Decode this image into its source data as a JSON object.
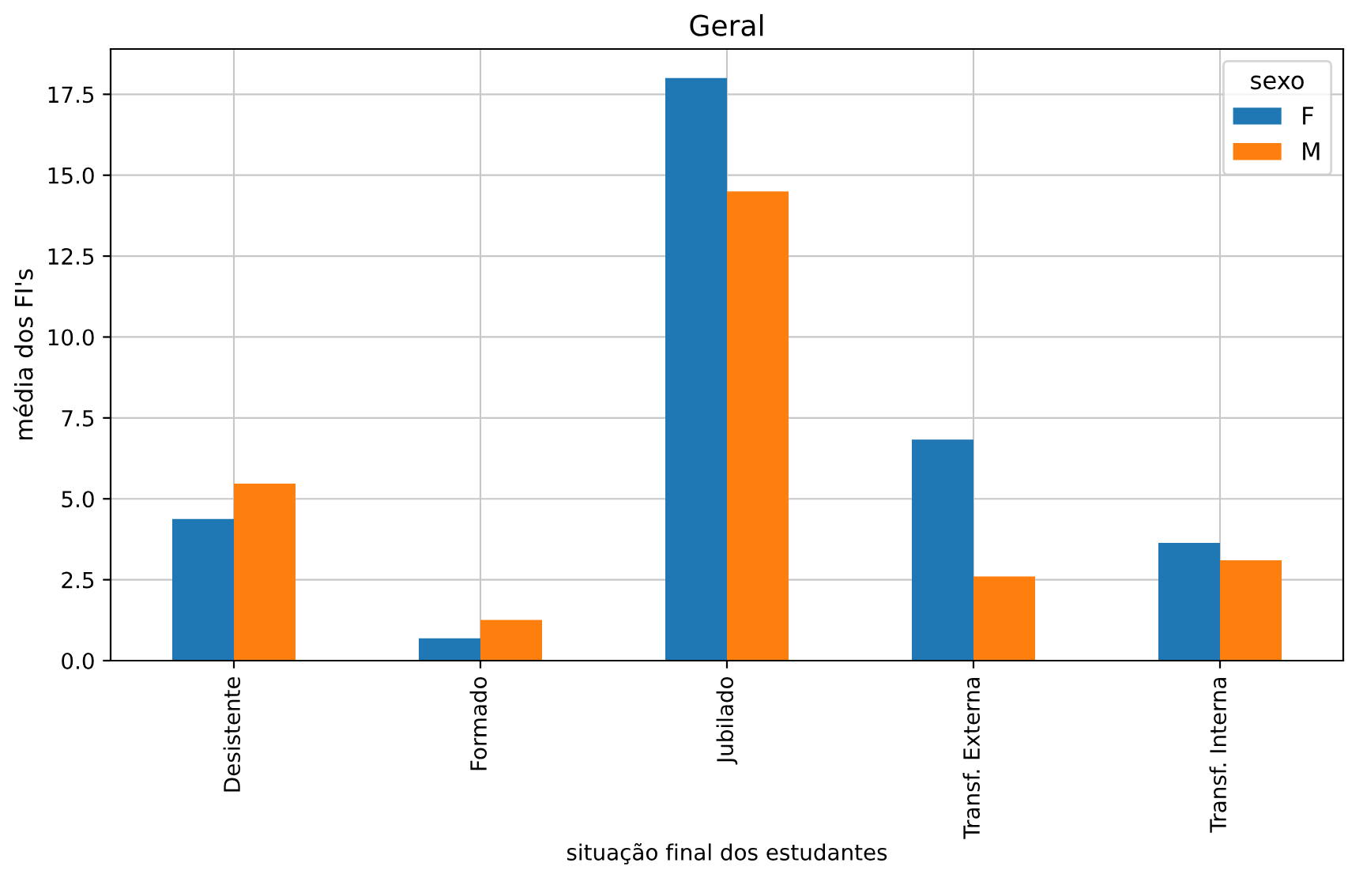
{
  "chart_data": {
    "type": "bar",
    "title": "Geral",
    "xlabel": "situação final dos estudantes",
    "ylabel": "média dos FI's",
    "legend_title": "sexo",
    "categories": [
      "Desistente",
      "Formado",
      "Jubilado",
      "Transf. Externa",
      "Transf. Interna"
    ],
    "series": [
      {
        "name": "F",
        "color": "#1f77b4",
        "values": [
          4.38,
          0.69,
          18.0,
          6.83,
          3.64
        ]
      },
      {
        "name": "M",
        "color": "#ff7f0e",
        "values": [
          5.47,
          1.26,
          14.5,
          2.6,
          3.1
        ]
      }
    ],
    "ylim": [
      0,
      18.9
    ],
    "yticks": [
      {
        "value": 0,
        "label": "0.0"
      },
      2.5,
      {
        "value": 5,
        "label": "5.0"
      },
      7.5,
      {
        "value": 10,
        "label": "10.0"
      },
      12.5,
      {
        "value": 15,
        "label": "15.0"
      },
      17.5
    ],
    "grid": true,
    "legend": "top right"
  }
}
